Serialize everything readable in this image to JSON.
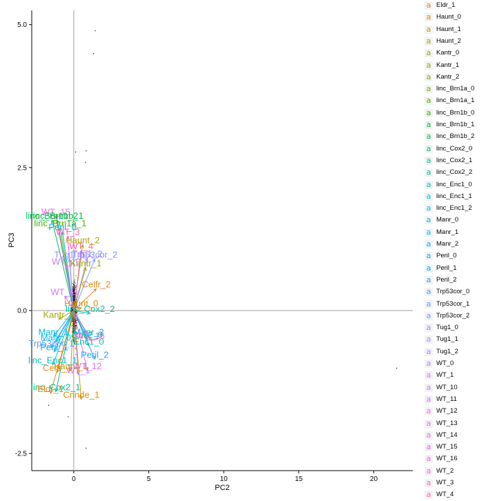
{
  "chart_data": {
    "type": "scatter",
    "subtype": "biplot",
    "xlabel": "PC2",
    "ylabel": "PC3",
    "xlim": [
      -2.8,
      22.6
    ],
    "ylim": [
      -2.8,
      5.25
    ],
    "x_ticks": [
      0,
      5,
      10,
      15,
      20
    ],
    "y_ticks": [
      -2.5,
      0.0,
      2.5,
      5.0
    ],
    "y_tick_labels": [
      "-2.5",
      "0.0",
      "2.5",
      "5.0"
    ],
    "reference_lines": {
      "x": 0,
      "y": 0
    },
    "grid": false,
    "legend_position": "right",
    "legend_entries": [
      {
        "label": "Eldr_1",
        "color": "#e7861b"
      },
      {
        "label": "Haunt_0",
        "color": "#d89000"
      },
      {
        "label": "Haunt_1",
        "color": "#c59900"
      },
      {
        "label": "Haunt_2",
        "color": "#b0a100"
      },
      {
        "label": "Kantr_0",
        "color": "#a3a500"
      },
      {
        "label": "Kantr_1",
        "color": "#93aa00"
      },
      {
        "label": "Kantr_2",
        "color": "#81b100"
      },
      {
        "label": "linc_Brn1a_0",
        "color": "#6bb100"
      },
      {
        "label": "linc_Brn1a_1",
        "color": "#4fb400"
      },
      {
        "label": "linc_Brn1b_0",
        "color": "#1fb700"
      },
      {
        "label": "linc_Brn1b_1",
        "color": "#00ba38"
      },
      {
        "label": "linc_Brn1b_2",
        "color": "#00bc59"
      },
      {
        "label": "linc_Cox2_0",
        "color": "#00bf74"
      },
      {
        "label": "linc_Cox2_1",
        "color": "#00c08b"
      },
      {
        "label": "linc_Cox2_2",
        "color": "#00c0a0"
      },
      {
        "label": "linc_Enc1_0",
        "color": "#00c1b2"
      },
      {
        "label": "linc_Enc1_1",
        "color": "#00c0c4"
      },
      {
        "label": "linc_Enc1_2",
        "color": "#00bfd3"
      },
      {
        "label": "Manr_0",
        "color": "#00bde1"
      },
      {
        "label": "Manr_1",
        "color": "#00b9ed"
      },
      {
        "label": "Manr_2",
        "color": "#00b4f6"
      },
      {
        "label": "Peril_0",
        "color": "#00b0f6"
      },
      {
        "label": "Peril_1",
        "color": "#00a9ff"
      },
      {
        "label": "Peril_2",
        "color": "#24a1ff"
      },
      {
        "label": "Trp53cor_0",
        "color": "#3c9cff"
      },
      {
        "label": "Trp53cor_1",
        "color": "#619cff"
      },
      {
        "label": "Trp53cor_2",
        "color": "#7997ff"
      },
      {
        "label": "Tug1_0",
        "color": "#8d93ff"
      },
      {
        "label": "Tug1_1",
        "color": "#9f8cff"
      },
      {
        "label": "Tug1_2",
        "color": "#ae86ff"
      },
      {
        "label": "WT_0",
        "color": "#b983ff"
      },
      {
        "label": "WT_1",
        "color": "#c57dff"
      },
      {
        "label": "WT_10",
        "color": "#d079f8"
      },
      {
        "label": "WT_11",
        "color": "#db72fb"
      },
      {
        "label": "WT_12",
        "color": "#e36ef6"
      },
      {
        "label": "WT_13",
        "color": "#ea6bef"
      },
      {
        "label": "WT_14",
        "color": "#f066e8"
      },
      {
        "label": "WT_15",
        "color": "#f564e3"
      },
      {
        "label": "WT_16",
        "color": "#fa62db"
      },
      {
        "label": "WT_2",
        "color": "#fd61d1"
      },
      {
        "label": "WT_3",
        "color": "#ff62bc"
      },
      {
        "label": "WT_4",
        "color": "#ff65ae"
      }
    ],
    "loadings": [
      {
        "label": "WT_15",
        "x": -1.2,
        "y": 1.65,
        "color": "#f564e3"
      },
      {
        "label": "linc_Brn1b_2",
        "x": -1.45,
        "y": 1.58,
        "color": "#00bc59"
      },
      {
        "label": "linc_Brn1b_1",
        "x": -1.1,
        "y": 1.58,
        "color": "#00ba38"
      },
      {
        "label": "linc_Brn1a_1",
        "x": -0.9,
        "y": 1.45,
        "color": "#4fb400"
      },
      {
        "label": "Peril_0",
        "x": -0.75,
        "y": 1.38,
        "color": "#00b0f6"
      },
      {
        "label": "WT_3",
        "x": -0.4,
        "y": 1.3,
        "color": "#ff62bc"
      },
      {
        "label": "Haunt_2",
        "x": 0.6,
        "y": 1.15,
        "color": "#b0a100"
      },
      {
        "label": "WT_4",
        "x": 0.5,
        "y": 1.05,
        "color": "#ff65ae"
      },
      {
        "label": "Trp53cor_2",
        "x": 1.4,
        "y": 0.9,
        "color": "#7997ff"
      },
      {
        "label": "Tug1_2",
        "x": 0.9,
        "y": 0.92,
        "color": "#ae86ff"
      },
      {
        "label": "Tug1_0",
        "x": -0.3,
        "y": 0.9,
        "color": "#8d93ff"
      },
      {
        "label": "WT_10",
        "x": -0.5,
        "y": 0.78,
        "color": "#d079f8"
      },
      {
        "label": "Kantr_1",
        "x": 0.8,
        "y": 0.75,
        "color": "#93aa00"
      },
      {
        "label": "Celfr_2",
        "x": 1.5,
        "y": 0.38,
        "color": "#e7861b"
      },
      {
        "label": "WT_11",
        "x": -0.6,
        "y": 0.25,
        "color": "#db72fb"
      },
      {
        "label": "Haunt_0",
        "x": 0.5,
        "y": 0.05,
        "color": "#d89000"
      },
      {
        "label": "linc_Cox2_2",
        "x": 1.1,
        "y": -0.05,
        "color": "#00c0a0"
      },
      {
        "label": "Kantr_0",
        "x": -1.0,
        "y": -0.15,
        "color": "#a3a500"
      },
      {
        "label": "Manr_1",
        "x": -1.35,
        "y": -0.45,
        "color": "#00b9ed"
      },
      {
        "label": "Manr_2",
        "x": 1.0,
        "y": -0.45,
        "color": "#00b4f6"
      },
      {
        "label": "Cox2_0",
        "x": 0.9,
        "y": -0.5,
        "color": "#00bf74"
      },
      {
        "label": "Manr_0",
        "x": -1.2,
        "y": -0.55,
        "color": "#00bde1"
      },
      {
        "label": "WT_16",
        "x": 1.1,
        "y": -0.52,
        "color": "#fa62db"
      },
      {
        "label": "Trp53cor_1",
        "x": -1.5,
        "y": -0.65,
        "color": "#619cff"
      },
      {
        "label": "Enc1_0",
        "x": 1.0,
        "y": -0.62,
        "color": "#00c1b2"
      },
      {
        "label": "Peril_1",
        "x": -1.3,
        "y": -0.72,
        "color": "#00a9ff"
      },
      {
        "label": "Peril_2",
        "x": 1.4,
        "y": -0.85,
        "color": "#24a1ff"
      },
      {
        "label": "linc_Enc1_1",
        "x": -1.4,
        "y": -0.95,
        "color": "#00c0c4"
      },
      {
        "label": "Haunt_1",
        "x": -0.2,
        "y": -1.05,
        "color": "#c59900"
      },
      {
        "label": "Celfr_1",
        "x": -1.1,
        "y": -1.08,
        "color": "#e7861b"
      },
      {
        "label": "WT_1",
        "x": 0.3,
        "y": -1.12,
        "color": "#c57dff"
      },
      {
        "label": "WT_12",
        "x": 0.9,
        "y": -1.05,
        "color": "#e36ef6"
      },
      {
        "label": "linc_Cox2_1",
        "x": -1.2,
        "y": -1.42,
        "color": "#00c08b"
      },
      {
        "label": "Eldr_1",
        "x": -1.55,
        "y": -1.45,
        "color": "#e7861b"
      },
      {
        "label": "Cnnde_1",
        "x": 0.5,
        "y": -1.55,
        "color": "#d89000"
      }
    ],
    "outlier_points": [
      {
        "x": 1.4,
        "y": 4.9
      },
      {
        "x": 1.3,
        "y": 4.5
      },
      {
        "x": 0.8,
        "y": 2.8
      },
      {
        "x": 0.1,
        "y": 2.78
      },
      {
        "x": 0.75,
        "y": 2.6
      },
      {
        "x": 21.5,
        "y": -1.0
      },
      {
        "x": 0.8,
        "y": -2.4
      },
      {
        "x": -1.7,
        "y": -1.65
      },
      {
        "x": -0.4,
        "y": -1.85
      }
    ]
  }
}
